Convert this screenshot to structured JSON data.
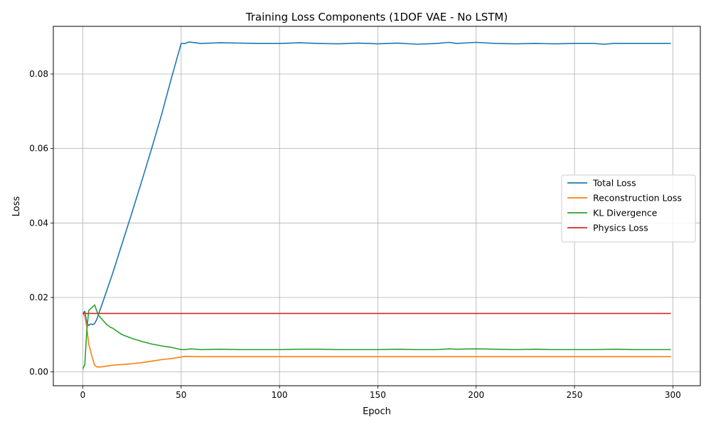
{
  "chart_data": {
    "type": "line",
    "title": "Training Loss Components (1DOF VAE - No LSTM)",
    "xlabel": "Epoch",
    "ylabel": "Loss",
    "xlim": [
      -15,
      314
    ],
    "ylim": [
      -0.0037,
      0.0928
    ],
    "xticks": [
      0,
      50,
      100,
      150,
      200,
      250,
      300
    ],
    "xtick_labels": [
      "0",
      "50",
      "100",
      "150",
      "200",
      "250",
      "300"
    ],
    "yticks": [
      0.0,
      0.02,
      0.04,
      0.06,
      0.08
    ],
    "ytick_labels": [
      "0.00",
      "0.02",
      "0.04",
      "0.06",
      "0.08"
    ],
    "grid": true,
    "legend_position": "center-right",
    "series": [
      {
        "name": "Total Loss",
        "color": "#1f77b4",
        "points": [
          [
            0,
            0.0157
          ],
          [
            1,
            0.0163
          ],
          [
            2,
            0.0132
          ],
          [
            3,
            0.0125
          ],
          [
            4,
            0.0129
          ],
          [
            5,
            0.0127
          ],
          [
            6,
            0.013
          ],
          [
            7,
            0.014
          ],
          [
            8,
            0.0155
          ],
          [
            10,
            0.0185
          ],
          [
            15,
            0.0262
          ],
          [
            20,
            0.0345
          ],
          [
            25,
            0.0428
          ],
          [
            30,
            0.0513
          ],
          [
            35,
            0.06
          ],
          [
            40,
            0.069
          ],
          [
            45,
            0.0788
          ],
          [
            50,
            0.0882
          ],
          [
            52,
            0.0882
          ],
          [
            54,
            0.0886
          ],
          [
            60,
            0.0882
          ],
          [
            70,
            0.0884
          ],
          [
            80,
            0.0883
          ],
          [
            90,
            0.0882
          ],
          [
            100,
            0.0882
          ],
          [
            110,
            0.0884
          ],
          [
            120,
            0.0882
          ],
          [
            130,
            0.0881
          ],
          [
            140,
            0.0883
          ],
          [
            150,
            0.0881
          ],
          [
            160,
            0.0883
          ],
          [
            170,
            0.088
          ],
          [
            180,
            0.0882
          ],
          [
            186,
            0.0885
          ],
          [
            190,
            0.0882
          ],
          [
            200,
            0.0885
          ],
          [
            210,
            0.0882
          ],
          [
            220,
            0.0881
          ],
          [
            230,
            0.0882
          ],
          [
            240,
            0.0881
          ],
          [
            250,
            0.0882
          ],
          [
            260,
            0.0882
          ],
          [
            265,
            0.088
          ],
          [
            270,
            0.0882
          ],
          [
            280,
            0.0882
          ],
          [
            290,
            0.0882
          ],
          [
            299,
            0.0882
          ]
        ]
      },
      {
        "name": "Reconstruction Loss",
        "color": "#ff7f0e",
        "points": [
          [
            0,
            0.0157
          ],
          [
            1,
            0.015
          ],
          [
            2,
            0.012
          ],
          [
            3,
            0.0075
          ],
          [
            4,
            0.0055
          ],
          [
            5,
            0.0035
          ],
          [
            6,
            0.0018
          ],
          [
            7,
            0.0014
          ],
          [
            8,
            0.0013
          ],
          [
            10,
            0.0014
          ],
          [
            15,
            0.0018
          ],
          [
            20,
            0.002
          ],
          [
            25,
            0.0022
          ],
          [
            30,
            0.0025
          ],
          [
            35,
            0.0029
          ],
          [
            40,
            0.0033
          ],
          [
            45,
            0.0036
          ],
          [
            50,
            0.004
          ],
          [
            52,
            0.0042
          ],
          [
            60,
            0.0041
          ],
          [
            70,
            0.0041
          ],
          [
            80,
            0.0041
          ],
          [
            90,
            0.0041
          ],
          [
            100,
            0.0041
          ],
          [
            110,
            0.0041
          ],
          [
            120,
            0.0041
          ],
          [
            130,
            0.0041
          ],
          [
            140,
            0.0041
          ],
          [
            150,
            0.0041
          ],
          [
            160,
            0.0041
          ],
          [
            170,
            0.0041
          ],
          [
            180,
            0.0041
          ],
          [
            190,
            0.0041
          ],
          [
            200,
            0.0041
          ],
          [
            210,
            0.0041
          ],
          [
            220,
            0.0041
          ],
          [
            230,
            0.0041
          ],
          [
            240,
            0.0041
          ],
          [
            250,
            0.0041
          ],
          [
            260,
            0.0041
          ],
          [
            270,
            0.0041
          ],
          [
            280,
            0.0041
          ],
          [
            290,
            0.0041
          ],
          [
            299,
            0.0041
          ]
        ]
      },
      {
        "name": "KL Divergence",
        "color": "#2ca02c",
        "points": [
          [
            0,
            0.0008
          ],
          [
            1,
            0.002
          ],
          [
            2,
            0.011
          ],
          [
            3,
            0.0165
          ],
          [
            4,
            0.017
          ],
          [
            5,
            0.0175
          ],
          [
            6,
            0.018
          ],
          [
            7,
            0.0165
          ],
          [
            8,
            0.0152
          ],
          [
            10,
            0.014
          ],
          [
            12,
            0.0128
          ],
          [
            14,
            0.012
          ],
          [
            15,
            0.0118
          ],
          [
            20,
            0.01
          ],
          [
            25,
            0.009
          ],
          [
            30,
            0.0082
          ],
          [
            35,
            0.0075
          ],
          [
            40,
            0.007
          ],
          [
            45,
            0.0066
          ],
          [
            50,
            0.006
          ],
          [
            52,
            0.006
          ],
          [
            55,
            0.0062
          ],
          [
            60,
            0.006
          ],
          [
            70,
            0.0061
          ],
          [
            80,
            0.006
          ],
          [
            90,
            0.006
          ],
          [
            100,
            0.006
          ],
          [
            110,
            0.0061
          ],
          [
            120,
            0.0061
          ],
          [
            130,
            0.006
          ],
          [
            140,
            0.006
          ],
          [
            150,
            0.006
          ],
          [
            160,
            0.0061
          ],
          [
            170,
            0.006
          ],
          [
            180,
            0.006
          ],
          [
            186,
            0.0062
          ],
          [
            190,
            0.0061
          ],
          [
            200,
            0.0062
          ],
          [
            210,
            0.0061
          ],
          [
            220,
            0.006
          ],
          [
            230,
            0.0061
          ],
          [
            240,
            0.006
          ],
          [
            250,
            0.006
          ],
          [
            260,
            0.006
          ],
          [
            270,
            0.0061
          ],
          [
            280,
            0.006
          ],
          [
            290,
            0.006
          ],
          [
            299,
            0.006
          ]
        ]
      },
      {
        "name": "Physics Loss",
        "color": "#d62728",
        "points": [
          [
            0,
            0.0157
          ],
          [
            299,
            0.0157
          ]
        ]
      }
    ]
  }
}
